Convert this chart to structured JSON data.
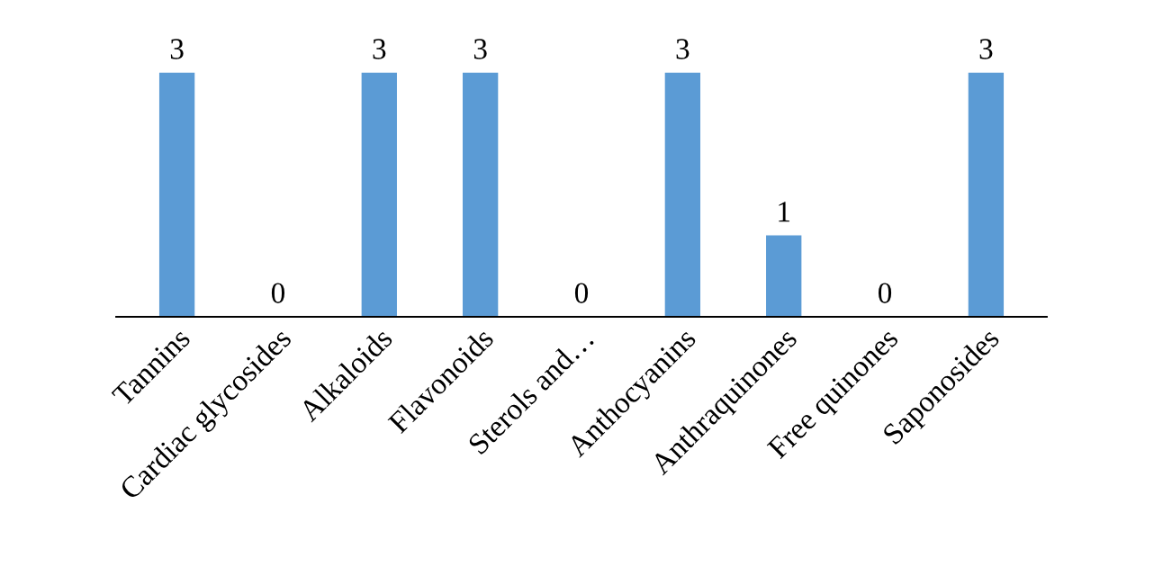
{
  "chart_data": {
    "type": "bar",
    "categories": [
      "Tannins",
      "Cardiac glycosides",
      "Alkaloids",
      "Flavonoids",
      "Sterols and…",
      "Anthocyanins",
      "Anthraquinones",
      "Free quinones",
      "Saponosides"
    ],
    "values": [
      3,
      0,
      3,
      3,
      0,
      3,
      1,
      0,
      3
    ],
    "color": "#5b9bd5",
    "data_labels": true,
    "grid": false,
    "legend": false
  }
}
